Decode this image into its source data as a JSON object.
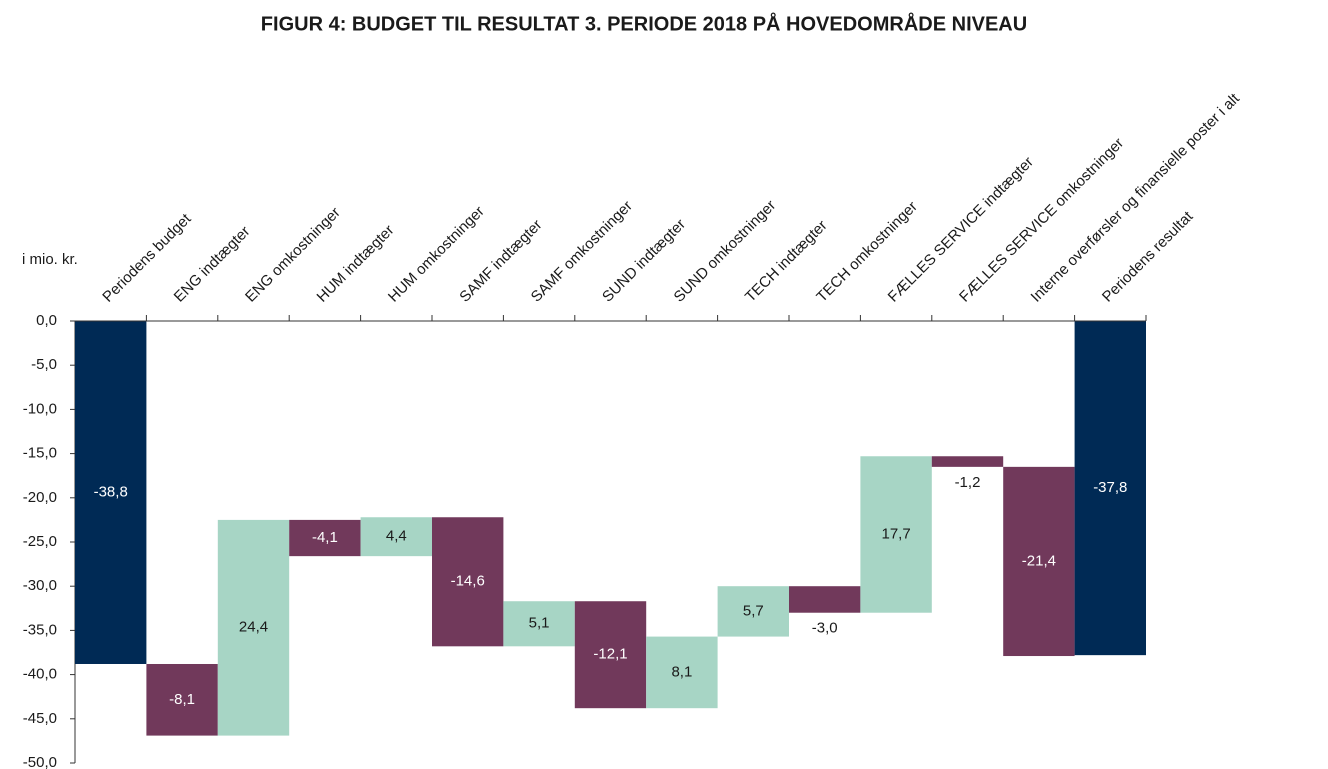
{
  "chart_data": {
    "type": "waterfall",
    "title": "FIGUR 4: BUDGET TIL RESULTAT 3. PERIODE 2018 PÅ HOVEDOMRÅDE NIVEAU",
    "y_label": "i mio. kr.",
    "categories": [
      "Periodens budget",
      "ENG indtægter",
      "ENG omkostninger",
      "HUM indtægter",
      "HUM omkostninger",
      "SAMF indtægter",
      "SAMF omkostninger",
      "SUND indtægter",
      "SUND omkostninger",
      "TECH indtægter",
      "TECH omkostninger",
      "FÆLLES SERVICE indtægter",
      "FÆLLES SERVICE omkostninger",
      "Interne overførsler og finansielle poster i alt",
      "Periodens resultat"
    ],
    "values": [
      -38.8,
      -8.1,
      24.4,
      -4.1,
      4.4,
      -14.6,
      5.1,
      -12.1,
      8.1,
      5.7,
      -3.0,
      17.7,
      -1.2,
      -21.4,
      -37.8
    ],
    "value_labels": [
      "-38,8",
      "-8,1",
      "24,4",
      "-4,1",
      "4,4",
      "-14,6",
      "5,1",
      "-12,1",
      "8,1",
      "5,7",
      "-3,0",
      "17,7",
      "-1,2",
      "-21,4",
      "-37,8"
    ],
    "colors": [
      "#002a55",
      "#71395b",
      "#a7d5c5",
      "#71395b",
      "#a7d5c5",
      "#71395b",
      "#a7d5c5",
      "#71395b",
      "#a7d5c5",
      "#a7d5c5",
      "#71395b",
      "#a7d5c5",
      "#71395b",
      "#71395b",
      "#002a55"
    ],
    "ylim": [
      0,
      -50
    ],
    "yticks": [
      {
        "value": 0,
        "label": "0,0"
      },
      {
        "value": -5,
        "label": "-5,0"
      },
      {
        "value": -10,
        "label": "-10,0"
      },
      {
        "value": -15,
        "label": "-15,0"
      },
      {
        "value": -20,
        "label": "-20,0"
      },
      {
        "value": -25,
        "label": "-25,0"
      },
      {
        "value": -30,
        "label": "-30,0"
      },
      {
        "value": -35,
        "label": "-35,0"
      },
      {
        "value": -40,
        "label": "-40,0"
      },
      {
        "value": -45,
        "label": "-45,0"
      },
      {
        "value": -50,
        "label": "-50,0"
      }
    ]
  }
}
